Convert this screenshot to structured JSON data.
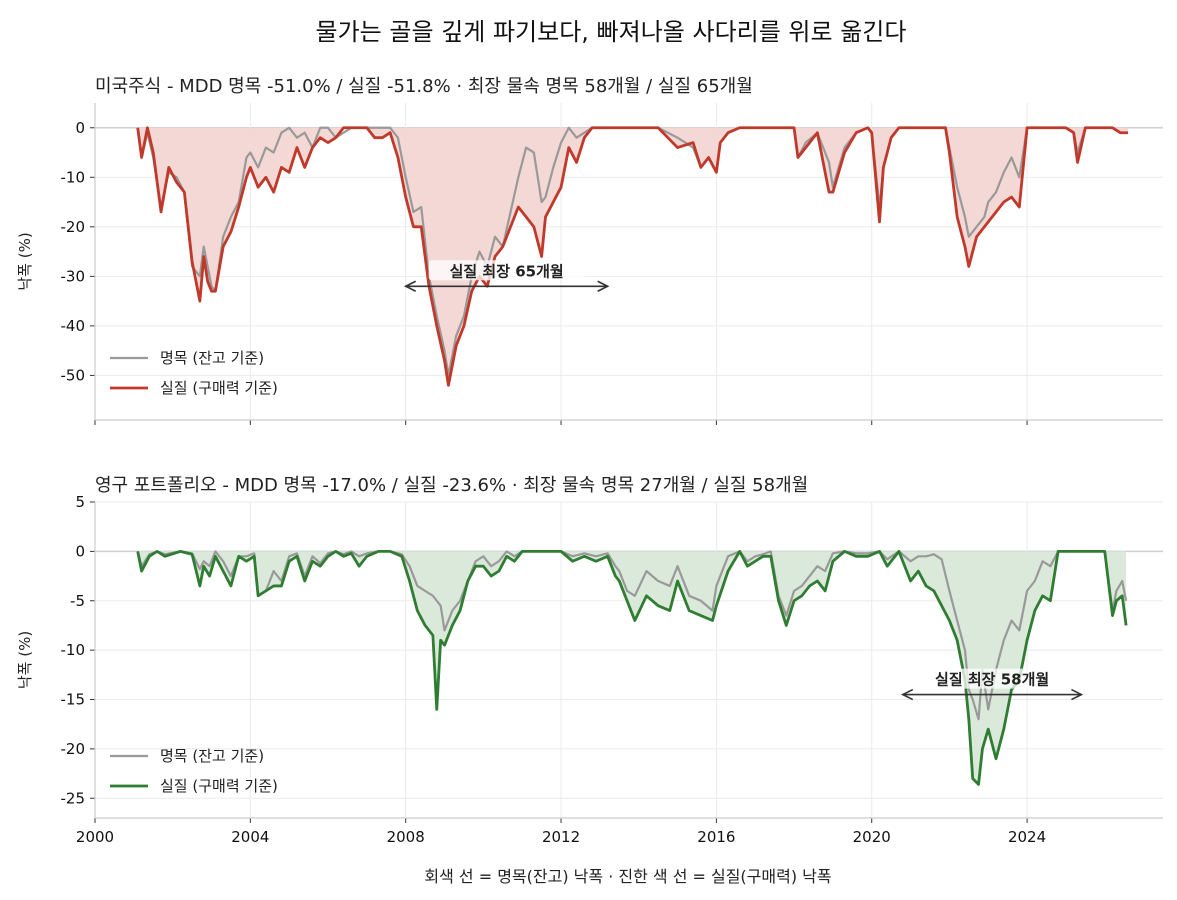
{
  "figure": {
    "suptitle": "물가는 골을 깊게 파기보다, 빠져나올 사다리를 위로 옮긴다",
    "xlabel": "회색 선 = 명목(잔고) 낙폭 · 진한 색 선 = 실질(구매력) 낙폭"
  },
  "colors": {
    "nominal": "#999999",
    "real_top": "#c0392b",
    "fill_top": "#f2d6d3",
    "real_bottom": "#2e7d32",
    "fill_bottom": "#d9e8d9",
    "grid": "#ebebeb",
    "axis": "#cccccc"
  },
  "chart_data": [
    {
      "type": "line",
      "title": "미국주식 - MDD 명목 -51.0% / 실질 -51.8%   ·   최장 물속 명목 58개월 / 실질 65개월",
      "ylabel": "낙폭 (%)",
      "xlim": [
        2000,
        2027.5
      ],
      "ylim": [
        -59,
        5
      ],
      "yticks": [
        0,
        -10,
        -20,
        -30,
        -40,
        -50
      ],
      "xticks": [
        2000,
        2004,
        2008,
        2012,
        2016,
        2020,
        2024
      ],
      "grid": true,
      "legend_position": "lower-left",
      "legend": [
        "명목 (잔고 기준)",
        "실질 (구매력 기준)"
      ],
      "annotation": {
        "text": "실질 최장 65개월",
        "x_start": 2008.0,
        "x_end": 2013.2,
        "y": -32
      },
      "series": [
        {
          "name": "명목 (잔고 기준)",
          "x": [
            2001.1,
            2001.2,
            2001.35,
            2001.5,
            2001.7,
            2001.9,
            2002.1,
            2002.3,
            2002.5,
            2002.7,
            2002.8,
            2002.9,
            2003.0,
            2003.1,
            2003.3,
            2003.5,
            2003.7,
            2003.9,
            2004.0,
            2004.2,
            2004.4,
            2004.6,
            2004.8,
            2005.0,
            2005.2,
            2005.4,
            2005.6,
            2005.8,
            2006.0,
            2006.2,
            2006.4,
            2006.6,
            2006.8,
            2007.0,
            2007.2,
            2007.4,
            2007.6,
            2007.8,
            2008.0,
            2008.2,
            2008.4,
            2008.6,
            2008.8,
            2009.0,
            2009.1,
            2009.3,
            2009.5,
            2009.7,
            2009.9,
            2010.1,
            2010.3,
            2010.5,
            2010.7,
            2010.9,
            2011.1,
            2011.3,
            2011.5,
            2011.6,
            2011.8,
            2012.0,
            2012.2,
            2012.4,
            2012.6,
            2012.8,
            2013.0,
            2013.3,
            2013.6,
            2014.0,
            2014.5,
            2015.0,
            2015.4,
            2015.6,
            2015.8,
            2016.0,
            2016.1,
            2016.3,
            2016.6,
            2017.0,
            2017.5,
            2018.0,
            2018.1,
            2018.3,
            2018.6,
            2018.9,
            2019.0,
            2019.3,
            2019.6,
            2019.9,
            2020.0,
            2020.2,
            2020.3,
            2020.5,
            2020.7,
            2021.0,
            2021.5,
            2021.9,
            2022.0,
            2022.2,
            2022.4,
            2022.5,
            2022.7,
            2022.9,
            2023.0,
            2023.2,
            2023.4,
            2023.6,
            2023.8,
            2024.0,
            2024.2,
            2024.5,
            2024.8,
            2025.0,
            2025.2,
            2025.3,
            2025.5,
            2025.8,
            2026.0,
            2026.2,
            2026.4,
            2026.6
          ],
          "values": [
            0,
            -6,
            -1,
            -6,
            -16,
            -9,
            -10,
            -13,
            -28,
            -30,
            -24,
            -28,
            -32,
            -33,
            -22,
            -18,
            -15,
            -6,
            -5,
            -8,
            -4,
            -5,
            -1,
            0,
            -2,
            -1,
            -4,
            0,
            0,
            -2,
            -1,
            0,
            0,
            0,
            0,
            0,
            0,
            -2,
            -10,
            -17,
            -16,
            -30,
            -38,
            -45,
            -50,
            -42,
            -38,
            -30,
            -25,
            -28,
            -22,
            -24,
            -17,
            -10,
            -4,
            -5,
            -15,
            -14,
            -8,
            -3,
            0,
            -2,
            -1,
            0,
            0,
            0,
            0,
            0,
            0,
            -2,
            -4,
            -8,
            -6,
            -9,
            -3,
            -1,
            0,
            0,
            0,
            0,
            -6,
            -3,
            -1,
            -7,
            -12,
            -4,
            -1,
            0,
            -1,
            -16,
            -8,
            -2,
            0,
            0,
            0,
            0,
            -4,
            -12,
            -18,
            -22,
            -20,
            -18,
            -15,
            -13,
            -9,
            -6,
            -10,
            0,
            0,
            0,
            0,
            0,
            -1,
            -5,
            0,
            0,
            0,
            0,
            -1,
            -1
          ]
        },
        {
          "name": "실질 (구매력 기준)",
          "x": [
            2001.1,
            2001.2,
            2001.35,
            2001.5,
            2001.7,
            2001.9,
            2002.1,
            2002.3,
            2002.5,
            2002.7,
            2002.8,
            2002.9,
            2003.0,
            2003.1,
            2003.3,
            2003.5,
            2003.7,
            2003.9,
            2004.0,
            2004.2,
            2004.4,
            2004.6,
            2004.8,
            2005.0,
            2005.2,
            2005.4,
            2005.6,
            2005.8,
            2006.0,
            2006.2,
            2006.4,
            2006.6,
            2006.8,
            2007.0,
            2007.2,
            2007.4,
            2007.6,
            2007.8,
            2008.0,
            2008.2,
            2008.4,
            2008.6,
            2008.8,
            2009.0,
            2009.1,
            2009.3,
            2009.5,
            2009.7,
            2009.9,
            2010.1,
            2010.3,
            2010.5,
            2010.7,
            2010.9,
            2011.1,
            2011.3,
            2011.5,
            2011.6,
            2011.8,
            2012.0,
            2012.2,
            2012.4,
            2012.6,
            2012.8,
            2013.0,
            2013.3,
            2013.6,
            2014.0,
            2014.5,
            2015.0,
            2015.4,
            2015.6,
            2015.8,
            2016.0,
            2016.1,
            2016.3,
            2016.6,
            2017.0,
            2017.5,
            2018.0,
            2018.1,
            2018.3,
            2018.6,
            2018.9,
            2019.0,
            2019.3,
            2019.6,
            2019.9,
            2020.0,
            2020.2,
            2020.3,
            2020.5,
            2020.7,
            2021.0,
            2021.5,
            2021.9,
            2022.0,
            2022.2,
            2022.4,
            2022.5,
            2022.7,
            2022.9,
            2023.0,
            2023.2,
            2023.4,
            2023.6,
            2023.8,
            2024.0,
            2024.2,
            2024.5,
            2024.8,
            2025.0,
            2025.2,
            2025.3,
            2025.5,
            2025.8,
            2026.0,
            2026.2,
            2026.4,
            2026.6
          ],
          "values": [
            0,
            -6,
            0,
            -5,
            -17,
            -8,
            -11,
            -13,
            -27,
            -35,
            -26,
            -31,
            -33,
            -33,
            -24,
            -21,
            -16,
            -10,
            -8,
            -12,
            -10,
            -13,
            -8,
            -9,
            -4,
            -8,
            -4,
            -2,
            -3,
            -2,
            0,
            0,
            0,
            0,
            -2,
            -2,
            -1,
            -6,
            -14,
            -20,
            -20,
            -32,
            -40,
            -47,
            -52,
            -44,
            -40,
            -33,
            -30,
            -32,
            -26,
            -24,
            -20,
            -16,
            -18,
            -20,
            -26,
            -18,
            -15,
            -12,
            -4,
            -7,
            -2,
            0,
            0,
            0,
            0,
            0,
            0,
            -4,
            -3,
            -8,
            -6,
            -9,
            -3,
            -1,
            0,
            0,
            0,
            0,
            -6,
            -4,
            -1,
            -13,
            -13,
            -5,
            -1,
            0,
            -1,
            -19,
            -8,
            -2,
            0,
            0,
            0,
            0,
            -5,
            -18,
            -24,
            -28,
            -22,
            -20,
            -19,
            -17,
            -15,
            -14,
            -16,
            0,
            0,
            0,
            0,
            0,
            -1,
            -7,
            0,
            0,
            0,
            0,
            -1,
            -1
          ]
        }
      ]
    },
    {
      "type": "line",
      "title": "영구 포트폴리오 - MDD 명목 -17.0% / 실질 -23.6%   ·   최장 물속 명목 27개월 / 실질 58개월",
      "ylabel": "낙폭 (%)",
      "xlim": [
        2000,
        2027.5
      ],
      "ylim": [
        -27,
        5
      ],
      "yticks": [
        5,
        0,
        -5,
        -10,
        -15,
        -20,
        -25
      ],
      "xticks": [
        2000,
        2004,
        2008,
        2012,
        2016,
        2020,
        2024
      ],
      "grid": true,
      "legend_position": "lower-left",
      "legend": [
        "명목 (잔고 기준)",
        "실질 (구매력 기준)"
      ],
      "annotation": {
        "text": "실질 최장 58개월",
        "x_start": 2020.8,
        "x_end": 2025.4,
        "y": -14.5
      },
      "series": [
        {
          "name": "명목 (잔고 기준)",
          "x": [
            2001.1,
            2001.2,
            2001.4,
            2001.6,
            2001.8,
            2002.2,
            2002.5,
            2002.7,
            2002.8,
            2002.95,
            2003.1,
            2003.3,
            2003.5,
            2003.7,
            2003.9,
            2004.1,
            2004.2,
            2004.4,
            2004.6,
            2004.8,
            2005.0,
            2005.2,
            2005.4,
            2005.6,
            2005.8,
            2006.0,
            2006.2,
            2006.4,
            2006.6,
            2006.8,
            2007.0,
            2007.3,
            2007.6,
            2007.9,
            2008.1,
            2008.3,
            2008.5,
            2008.7,
            2008.8,
            2008.9,
            2009.0,
            2009.2,
            2009.4,
            2009.6,
            2009.8,
            2010.0,
            2010.2,
            2010.4,
            2010.6,
            2010.8,
            2011.0,
            2011.5,
            2012.0,
            2012.3,
            2012.6,
            2012.9,
            2013.2,
            2013.4,
            2013.5,
            2013.7,
            2013.9,
            2014.2,
            2014.5,
            2014.8,
            2015.0,
            2015.3,
            2015.6,
            2015.9,
            2016.0,
            2016.3,
            2016.6,
            2016.8,
            2017.0,
            2017.2,
            2017.4,
            2017.6,
            2017.8,
            2018.0,
            2018.2,
            2018.4,
            2018.6,
            2018.8,
            2019.0,
            2019.3,
            2019.6,
            2019.9,
            2020.2,
            2020.4,
            2020.7,
            2021.0,
            2021.2,
            2021.4,
            2021.6,
            2021.8,
            2022.0,
            2022.2,
            2022.4,
            2022.5,
            2022.6,
            2022.75,
            2022.85,
            2023.0,
            2023.2,
            2023.4,
            2023.6,
            2023.8,
            2024.0,
            2024.2,
            2024.4,
            2024.6,
            2024.8,
            2025.0,
            2025.2,
            2025.4,
            2025.6,
            2026.0,
            2026.2,
            2026.3,
            2026.45,
            2026.55
          ],
          "values": [
            0,
            -1.5,
            -0.3,
            0,
            -0.3,
            0,
            -0.2,
            -1.8,
            -1,
            -1.5,
            0,
            -1,
            -2.5,
            -0.5,
            -0.5,
            -0.2,
            -4.5,
            -4,
            -2,
            -3,
            -0.5,
            -0.2,
            -2.5,
            -0.5,
            -1.2,
            -0.2,
            0,
            -0.3,
            0,
            -0.5,
            -0.2,
            0,
            0,
            -0.3,
            -1.5,
            -3.5,
            -4,
            -4.5,
            -5,
            -5.5,
            -8,
            -6,
            -5,
            -3,
            -1,
            -0.5,
            -1.5,
            -1,
            0,
            -0.5,
            0,
            0,
            0,
            -0.5,
            -0.2,
            -0.5,
            -0.2,
            -1.5,
            -2,
            -4,
            -4.5,
            -2,
            -3,
            -3.5,
            -1.5,
            -4.5,
            -5,
            -6,
            -3.5,
            -0.5,
            0,
            -1,
            -0.5,
            -0.3,
            0,
            -4.5,
            -6.5,
            -4,
            -3.5,
            -2.5,
            -1.5,
            -2,
            -0.2,
            0,
            -0.2,
            -0.2,
            0,
            -0.8,
            0,
            -1,
            -0.5,
            -0.5,
            -0.3,
            -0.8,
            -4,
            -7,
            -10,
            -14,
            -15,
            -17,
            -12,
            -16,
            -12,
            -9,
            -7,
            -8,
            -4,
            -3,
            -1,
            -1.5,
            0,
            0,
            0,
            0,
            0,
            0,
            -6,
            -4,
            -3,
            -5
          ]
        },
        {
          "name": "실질 (구매력 기준)",
          "x": [
            2001.1,
            2001.2,
            2001.4,
            2001.6,
            2001.8,
            2002.2,
            2002.5,
            2002.7,
            2002.8,
            2002.95,
            2003.1,
            2003.3,
            2003.5,
            2003.7,
            2003.9,
            2004.1,
            2004.2,
            2004.4,
            2004.6,
            2004.8,
            2005.0,
            2005.2,
            2005.4,
            2005.6,
            2005.8,
            2006.0,
            2006.2,
            2006.4,
            2006.6,
            2006.8,
            2007.0,
            2007.3,
            2007.6,
            2007.9,
            2008.1,
            2008.3,
            2008.5,
            2008.7,
            2008.8,
            2008.9,
            2009.0,
            2009.2,
            2009.4,
            2009.6,
            2009.8,
            2010.0,
            2010.2,
            2010.4,
            2010.6,
            2010.8,
            2011.0,
            2011.5,
            2012.0,
            2012.3,
            2012.6,
            2012.9,
            2013.2,
            2013.4,
            2013.5,
            2013.7,
            2013.9,
            2014.2,
            2014.5,
            2014.8,
            2015.0,
            2015.3,
            2015.6,
            2015.9,
            2016.0,
            2016.3,
            2016.6,
            2016.8,
            2017.0,
            2017.2,
            2017.4,
            2017.6,
            2017.8,
            2018.0,
            2018.2,
            2018.4,
            2018.6,
            2018.8,
            2019.0,
            2019.3,
            2019.6,
            2019.9,
            2020.2,
            2020.4,
            2020.7,
            2021.0,
            2021.2,
            2021.4,
            2021.6,
            2021.8,
            2022.0,
            2022.2,
            2022.4,
            2022.5,
            2022.6,
            2022.75,
            2022.85,
            2023.0,
            2023.2,
            2023.4,
            2023.6,
            2023.8,
            2024.0,
            2024.2,
            2024.4,
            2024.6,
            2024.8,
            2025.0,
            2025.2,
            2025.4,
            2025.6,
            2026.0,
            2026.2,
            2026.3,
            2026.45,
            2026.55
          ],
          "values": [
            0,
            -2,
            -0.5,
            0,
            -0.5,
            0,
            -0.3,
            -3.5,
            -1.5,
            -2.5,
            -0.5,
            -2,
            -3.5,
            -0.5,
            -1,
            -0.5,
            -4.5,
            -4,
            -3.5,
            -3.5,
            -1,
            -0.5,
            -3,
            -1,
            -1.5,
            -0.5,
            0,
            -0.5,
            -0.2,
            -1.5,
            -0.5,
            0,
            0,
            -0.5,
            -3,
            -6,
            -7.5,
            -8.5,
            -16,
            -9,
            -9.5,
            -7.5,
            -6,
            -3,
            -1.5,
            -1.5,
            -2.5,
            -2,
            -0.5,
            -1,
            0,
            0,
            0,
            -1,
            -0.5,
            -1,
            -0.5,
            -2.5,
            -3,
            -5,
            -7,
            -4.5,
            -5.5,
            -6,
            -3,
            -6,
            -6.5,
            -7,
            -5.5,
            -2,
            0,
            -1.5,
            -1,
            -0.5,
            -0.5,
            -5,
            -7.5,
            -5,
            -4.5,
            -3.5,
            -3,
            -4,
            -1,
            0,
            -0.5,
            -0.5,
            0,
            -1.5,
            0,
            -3,
            -2,
            -3.5,
            -4,
            -5.5,
            -7,
            -9,
            -13,
            -17,
            -23,
            -23.6,
            -20,
            -18,
            -21,
            -18,
            -14,
            -13,
            -9,
            -6,
            -4.5,
            -5,
            0,
            0,
            0,
            0,
            0,
            0,
            -6.5,
            -5,
            -4.5,
            -7.5
          ]
        }
      ]
    }
  ]
}
